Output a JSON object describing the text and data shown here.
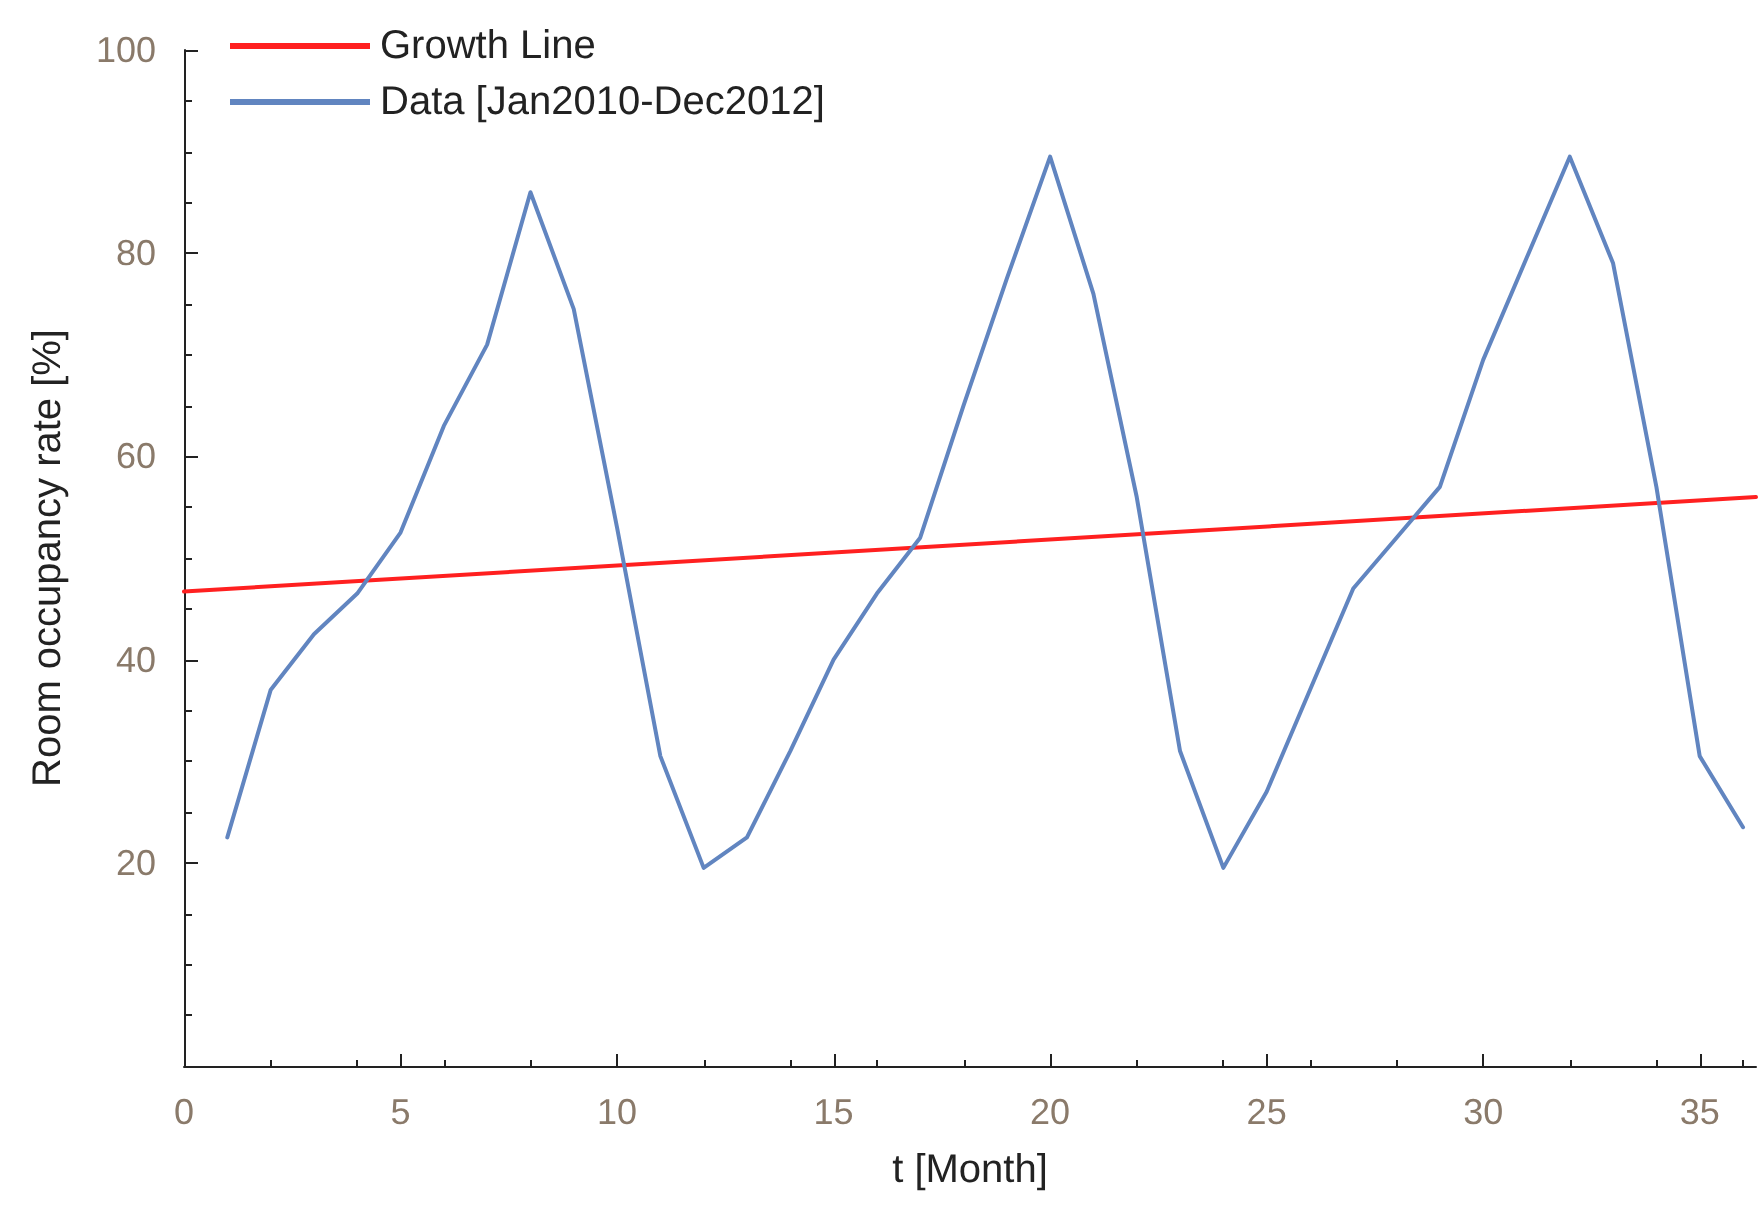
{
  "chart_data": {
    "type": "line",
    "xlabel": "t [Month]",
    "ylabel": "Room occupancy rate [%]",
    "xlim": [
      0,
      36.3
    ],
    "xticks": [
      0,
      5,
      10,
      15,
      20,
      25,
      30,
      35
    ],
    "ylim": [
      0,
      100
    ],
    "yticks": [
      20,
      40,
      60,
      80,
      100
    ],
    "grid": false,
    "legend": "top left",
    "marker": "none",
    "line_style": "solid",
    "series": [
      {
        "name": "Growth Line",
        "color": "#ff2020",
        "x": [
          0,
          36.3
        ],
        "values": [
          46.7,
          56
        ]
      },
      {
        "name": "Data [Jan2010-Dec2012]",
        "color": "#6185c0",
        "x": [
          1,
          2,
          3,
          4,
          5,
          6,
          7,
          8,
          9,
          10,
          11,
          12,
          13,
          14,
          15,
          16,
          17,
          18,
          19,
          20,
          21,
          22,
          23,
          24,
          25,
          26,
          27,
          28,
          29,
          30,
          31,
          32,
          33,
          34,
          35,
          36
        ],
        "values": [
          22.5,
          37,
          42.5,
          46.5,
          52.5,
          63,
          71,
          86,
          74.5,
          53,
          30.5,
          19.5,
          22.5,
          31,
          40,
          46.5,
          52,
          65,
          77.5,
          89.5,
          76,
          56,
          31,
          19.5,
          27,
          37,
          47,
          52,
          57,
          69.5,
          79.5,
          89.5,
          79,
          57,
          30.5,
          23.5
        ]
      }
    ]
  }
}
